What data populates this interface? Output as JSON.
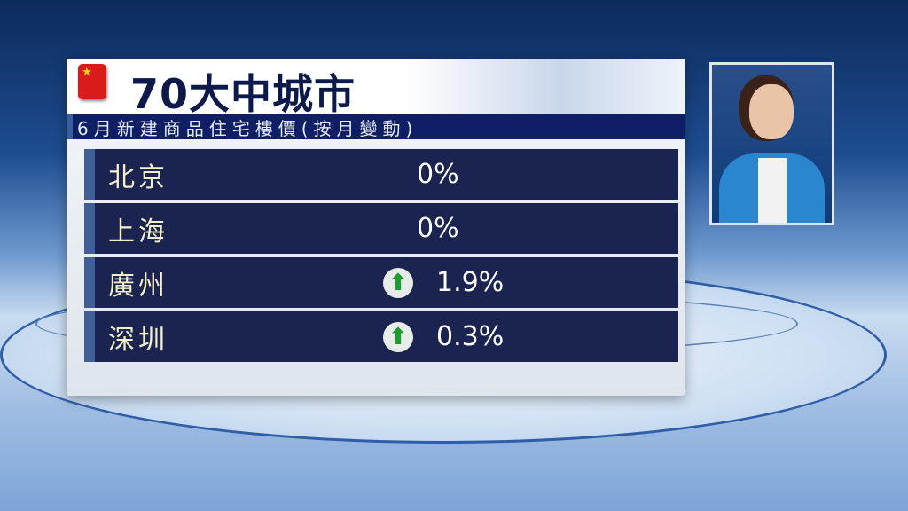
{
  "title": "70大中城市",
  "subtitle": "6月新建商品住宅樓價(按月變動)",
  "rows": [
    {
      "city": "北京",
      "value": "0%",
      "trend": "none"
    },
    {
      "city": "上海",
      "value": "0%",
      "trend": "none"
    },
    {
      "city": "廣州",
      "value": "1.9%",
      "trend": "up"
    },
    {
      "city": "深圳",
      "value": "0.3%",
      "trend": "up"
    }
  ],
  "colors": {
    "title": "#0b1a4a",
    "subtitle_bar": "#0f1f66",
    "row_bg": "#1b2450",
    "city_text": "#f4f0cc",
    "up_arrow": "#1f9a2e"
  },
  "icons": {
    "flag": "china-flag-icon",
    "trend_up": "green-up-arrow-icon"
  }
}
